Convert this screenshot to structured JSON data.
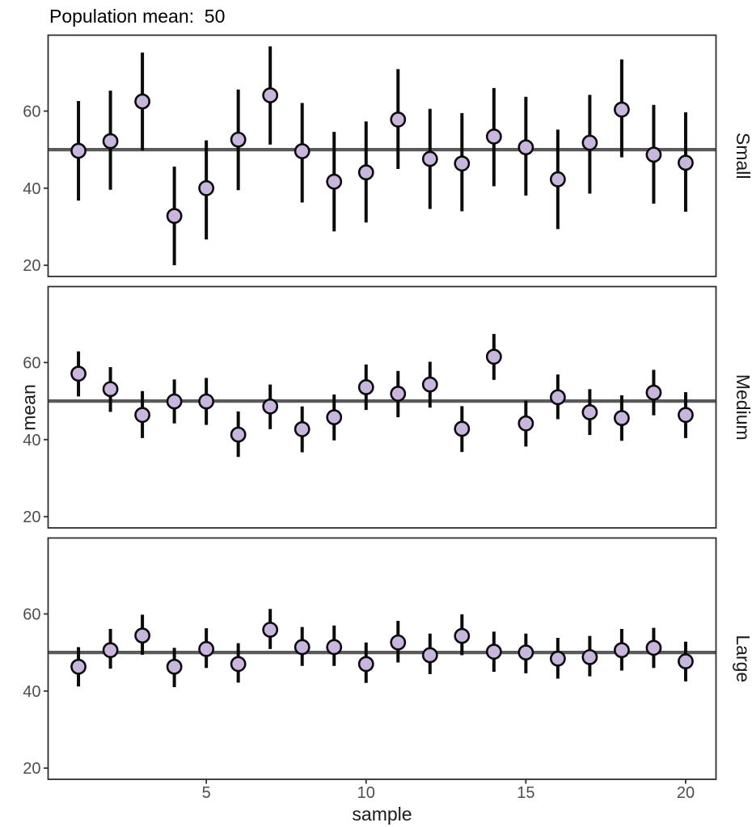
{
  "title": "Population mean:  50",
  "axes": {
    "x_label": "sample",
    "y_label": "mean",
    "x_ticks": [
      5,
      10,
      15,
      20
    ],
    "y_ticks": [
      20,
      40,
      60
    ]
  },
  "facet_labels": [
    "Small",
    "Medium",
    "Large"
  ],
  "colors": {
    "point_fill": "#C9B6DE",
    "point_stroke": "#0B0B0B",
    "error_bar": "#0B0B0B",
    "reference_line": "#5A5A5A",
    "panel_border": "#2E2E2E",
    "tick_mark": "#333333",
    "tick_label": "#4D4D4D",
    "title_text": "#000000"
  },
  "chart_data": {
    "type": "scatter",
    "subtype": "points-with-error-bars, 3 horizontal facets (sample size Small/Medium/Large)",
    "title": "Population mean:  50",
    "xlabel": "sample",
    "ylabel": "mean",
    "grid": false,
    "legend": "none",
    "reference_line_y": 50,
    "xlim": [
      0.05,
      20.95
    ],
    "ylim": [
      17.1,
      79.7
    ],
    "x_ticks": [
      5,
      10,
      15,
      20
    ],
    "y_ticks": [
      20,
      40,
      60
    ],
    "x": [
      1,
      2,
      3,
      4,
      5,
      6,
      7,
      8,
      9,
      10,
      11,
      12,
      13,
      14,
      15,
      16,
      17,
      18,
      19,
      20
    ],
    "facets": [
      {
        "label": "Small",
        "means": [
          49.7,
          52.2,
          62.5,
          32.8,
          40.0,
          52.6,
          64.1,
          49.6,
          41.7,
          44.1,
          57.8,
          47.6,
          46.4,
          53.4,
          50.6,
          42.3,
          51.8,
          60.4,
          48.7,
          46.6
        ],
        "lower": [
          36.8,
          39.6,
          49.8,
          20.0,
          26.7,
          39.5,
          51.3,
          36.3,
          28.8,
          31.1,
          45.0,
          34.6,
          34.0,
          40.5,
          38.1,
          29.4,
          38.6,
          48.0,
          36.0,
          33.9
        ],
        "upper": [
          62.6,
          65.3,
          75.2,
          45.6,
          52.4,
          65.6,
          76.8,
          62.1,
          54.6,
          57.3,
          70.9,
          60.6,
          59.5,
          66.0,
          63.7,
          55.2,
          64.2,
          73.4,
          61.6,
          59.7
        ]
      },
      {
        "label": "Medium",
        "means": [
          57.1,
          53.1,
          46.4,
          49.9,
          49.9,
          41.3,
          48.6,
          42.7,
          45.8,
          53.6,
          51.9,
          54.3,
          42.8,
          61.5,
          44.2,
          51.0,
          47.1,
          45.6,
          52.2,
          46.4
        ],
        "lower": [
          51.2,
          47.2,
          40.4,
          44.2,
          43.8,
          35.5,
          42.7,
          36.7,
          39.8,
          47.7,
          45.8,
          48.3,
          36.8,
          55.5,
          38.2,
          45.3,
          41.2,
          39.7,
          46.3,
          40.4
        ],
        "upper": [
          62.9,
          58.8,
          52.6,
          55.6,
          56.0,
          47.3,
          54.3,
          48.6,
          51.7,
          59.5,
          57.8,
          60.2,
          48.7,
          67.4,
          50.1,
          56.9,
          53.1,
          51.5,
          58.1,
          52.3
        ]
      },
      {
        "label": "Large",
        "means": [
          46.3,
          50.6,
          54.4,
          46.3,
          50.9,
          47.0,
          55.9,
          51.4,
          51.4,
          47.0,
          52.6,
          49.3,
          54.3,
          50.2,
          50.0,
          48.4,
          48.8,
          50.6,
          51.2,
          47.7
        ],
        "lower": [
          41.2,
          45.8,
          49.4,
          41.0,
          46.0,
          42.2,
          50.9,
          46.5,
          46.5,
          42.1,
          47.4,
          44.4,
          49.3,
          45.0,
          44.6,
          43.2,
          43.8,
          45.3,
          46.0,
          42.5
        ],
        "upper": [
          51.4,
          56.1,
          59.8,
          51.2,
          56.3,
          52.4,
          61.3,
          56.6,
          57.0,
          52.6,
          58.2,
          54.9,
          59.9,
          55.4,
          54.9,
          53.8,
          54.3,
          56.1,
          56.4,
          52.8
        ]
      }
    ]
  }
}
